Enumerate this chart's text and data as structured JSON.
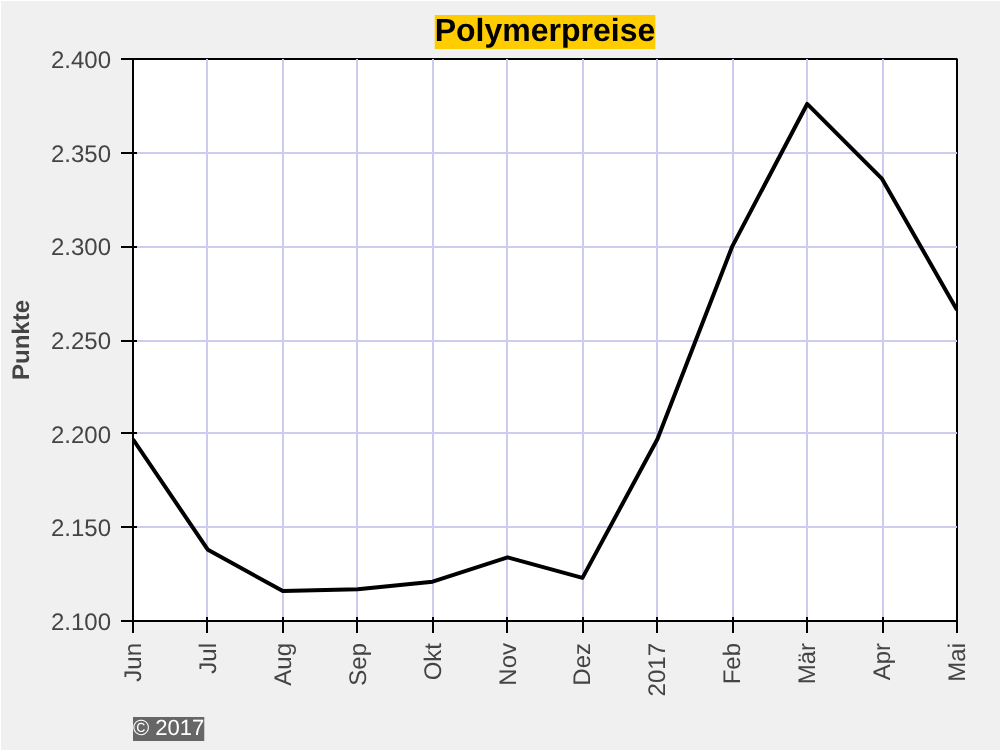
{
  "chart_data": {
    "type": "line",
    "title": "Polymerpreise",
    "ylabel": "Punkte",
    "categories": [
      "Jun",
      "Jul",
      "Aug",
      "Sep",
      "Okt",
      "Nov",
      "Dez",
      "2017",
      "Feb",
      "Mär",
      "Apr",
      "Mai"
    ],
    "series": [
      {
        "color": "#000000",
        "values": [
          2197,
          2138,
          2116,
          2117,
          2121,
          2134,
          2123,
          2197,
          2300,
          2376,
          2336,
          2266
        ]
      }
    ],
    "ylim": [
      2100,
      2400
    ],
    "yticks": [
      {
        "value": 2100,
        "label": "2.100"
      },
      {
        "value": 2150,
        "label": "2.150"
      },
      {
        "value": 2200,
        "label": "2.200"
      },
      {
        "value": 2250,
        "label": "2.250"
      },
      {
        "value": 2300,
        "label": "2.300"
      },
      {
        "value": 2350,
        "label": "2.350"
      },
      {
        "value": 2400,
        "label": "2.400"
      }
    ],
    "grid": true,
    "line_style": "solid",
    "marker": "none",
    "annotations": [
      "© 2017"
    ]
  }
}
